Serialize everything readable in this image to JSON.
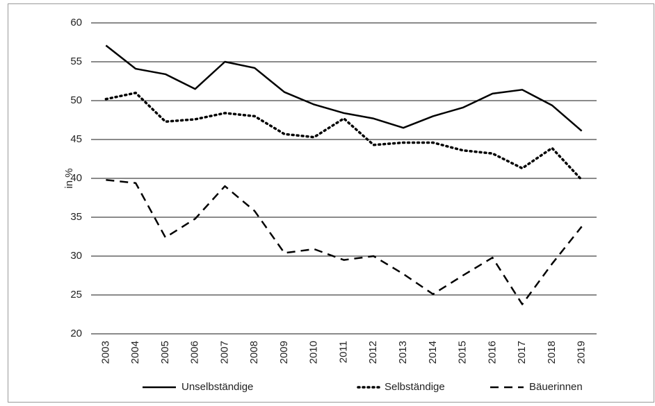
{
  "chart_data": {
    "type": "line",
    "y_label": "in %",
    "categories": [
      "2003",
      "2004",
      "2005",
      "2006",
      "2007",
      "2008",
      "2009",
      "2010",
      "2011",
      "2012",
      "2013",
      "2014",
      "2015",
      "2016",
      "2017",
      "2018",
      "2019"
    ],
    "series": [
      {
        "name": "Unselbständige",
        "color": "#000000",
        "style": "solid",
        "values": [
          57.1,
          54.1,
          53.4,
          51.5,
          55.0,
          54.2,
          51.1,
          49.5,
          48.4,
          47.7,
          46.5,
          48.0,
          49.1,
          50.9,
          51.4,
          49.4,
          46.1
        ]
      },
      {
        "name": "Selbständige",
        "color": "#000000",
        "style": "dotted",
        "values": [
          50.2,
          51.0,
          47.3,
          47.6,
          48.4,
          48.0,
          45.7,
          45.3,
          47.7,
          44.3,
          44.6,
          44.6,
          43.6,
          43.2,
          41.3,
          43.9,
          39.8
        ]
      },
      {
        "name": "Bäuerinnen",
        "color": "#000000",
        "style": "dashed",
        "values": [
          39.8,
          39.4,
          32.4,
          34.8,
          39.0,
          35.8,
          30.4,
          30.9,
          29.5,
          30.0,
          27.7,
          25.1,
          27.5,
          29.8,
          23.8,
          29.0,
          33.8
        ]
      }
    ],
    "ylim": [
      20,
      60
    ],
    "yticks": [
      20,
      25,
      30,
      35,
      40,
      45,
      50,
      55,
      60
    ],
    "grid": true,
    "legend": "bottom"
  }
}
